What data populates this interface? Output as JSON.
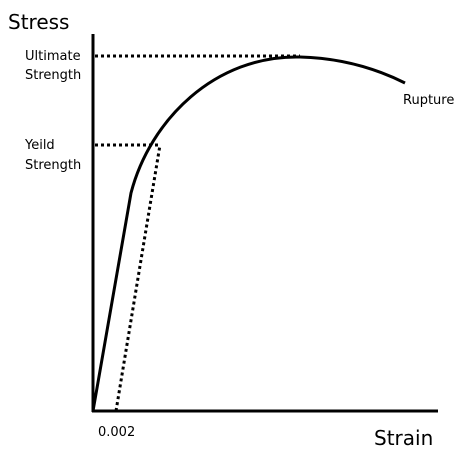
{
  "y_axis_label": "Stress",
  "x_axis_label": "Strain",
  "ultimate_label": [
    "Ultimate",
    "Strength"
  ],
  "yield_label": [
    "Yeild",
    "Strength"
  ],
  "rupture_label": "Rupture",
  "offset_label": "0.002"
}
